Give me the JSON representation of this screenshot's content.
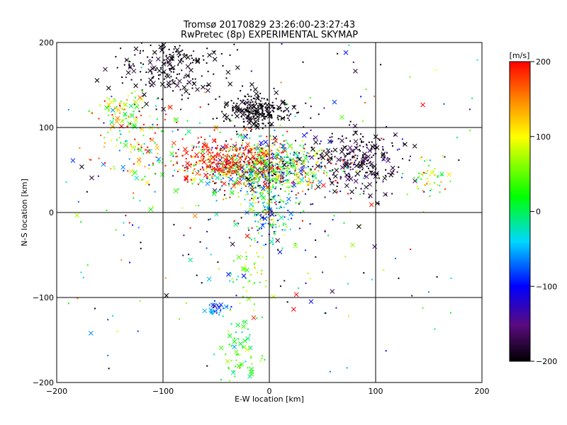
{
  "chart_data": {
    "type": "scatter",
    "title": "Tromsø 20170829 23:26:00-23:27:43",
    "subtitle": "RwPretec (8p) EXPERIMENTAL SKYMAP",
    "xlabel": "E-W location [km]",
    "ylabel": "N-S location [km]",
    "xlim": [
      -200,
      200
    ],
    "ylim": [
      -200,
      200
    ],
    "xticks": [
      "−200",
      "−100",
      "0",
      "100",
      "200"
    ],
    "yticks": [
      "−200",
      "−100",
      "0",
      "100",
      "200"
    ],
    "grid": true,
    "marker_types": [
      "dot",
      "cross"
    ],
    "colorbar": {
      "label": "[m/s]",
      "range": [
        -200,
        200
      ],
      "ticks": [
        "200",
        "100",
        "0",
        "−100",
        "−200"
      ],
      "colormap": "rainbow (black-purple-blue-cyan-green-yellow-red)"
    },
    "clusters": [
      {
        "region": "main",
        "x": -5,
        "y": 52,
        "sx": 30,
        "sy": 16,
        "n": 900,
        "v_mean": 20,
        "v_sd": 120,
        "cross_frac": 0.12
      },
      {
        "region": "west-red",
        "x": -40,
        "y": 60,
        "sx": 22,
        "sy": 12,
        "n": 250,
        "v_mean": 190,
        "v_sd": 10,
        "cross_frac": 0.12
      },
      {
        "region": "upper-black",
        "x": -12,
        "y": 120,
        "sx": 16,
        "sy": 10,
        "n": 260,
        "v_mean": -200,
        "v_sd": 10,
        "cross_frac": 0.25
      },
      {
        "region": "northwest-black",
        "x": -95,
        "y": 170,
        "sx": 25,
        "sy": 18,
        "n": 220,
        "v_mean": -195,
        "v_sd": 15,
        "cross_frac": 0.3
      },
      {
        "region": "east-black",
        "x": 85,
        "y": 62,
        "sx": 20,
        "sy": 18,
        "n": 260,
        "v_mean": -190,
        "v_sd": 25,
        "cross_frac": 0.3
      },
      {
        "region": "far-west-green",
        "x": -140,
        "y": 120,
        "sx": 12,
        "sy": 12,
        "n": 70,
        "v_mean": 60,
        "v_sd": 60,
        "cross_frac": 0.25
      },
      {
        "region": "west-mixed",
        "x": -120,
        "y": 80,
        "sx": 20,
        "sy": 25,
        "n": 130,
        "v_mean": 100,
        "v_sd": 120,
        "cross_frac": 0.2
      },
      {
        "region": "east-yellow-green",
        "x": 148,
        "y": 42,
        "sx": 8,
        "sy": 10,
        "n": 45,
        "v_mean": 70,
        "v_sd": 50,
        "cross_frac": 0.1
      },
      {
        "region": "south-spine",
        "x": 2,
        "y": 0,
        "sx": 12,
        "sy": 18,
        "n": 160,
        "v_mean": -20,
        "v_sd": 70,
        "cross_frac": 0.1
      },
      {
        "region": "south-green",
        "x": -28,
        "y": -170,
        "sx": 9,
        "sy": 22,
        "n": 70,
        "v_mean": 30,
        "v_sd": 35,
        "cross_frac": 0.35
      },
      {
        "region": "south-lower-green",
        "x": -20,
        "y": -75,
        "sx": 10,
        "sy": 14,
        "n": 40,
        "v_mean": 60,
        "v_sd": 40,
        "cross_frac": 0.15
      },
      {
        "region": "south-blue",
        "x": -50,
        "y": -113,
        "sx": 8,
        "sy": 5,
        "n": 35,
        "v_mean": -70,
        "v_sd": 30,
        "cross_frac": 0.2
      },
      {
        "region": "scattered",
        "x": 0,
        "y": 20,
        "sx": 110,
        "sy": 110,
        "n": 340,
        "v_mean": -30,
        "v_sd": 160,
        "cross_frac": 0.15
      }
    ]
  }
}
